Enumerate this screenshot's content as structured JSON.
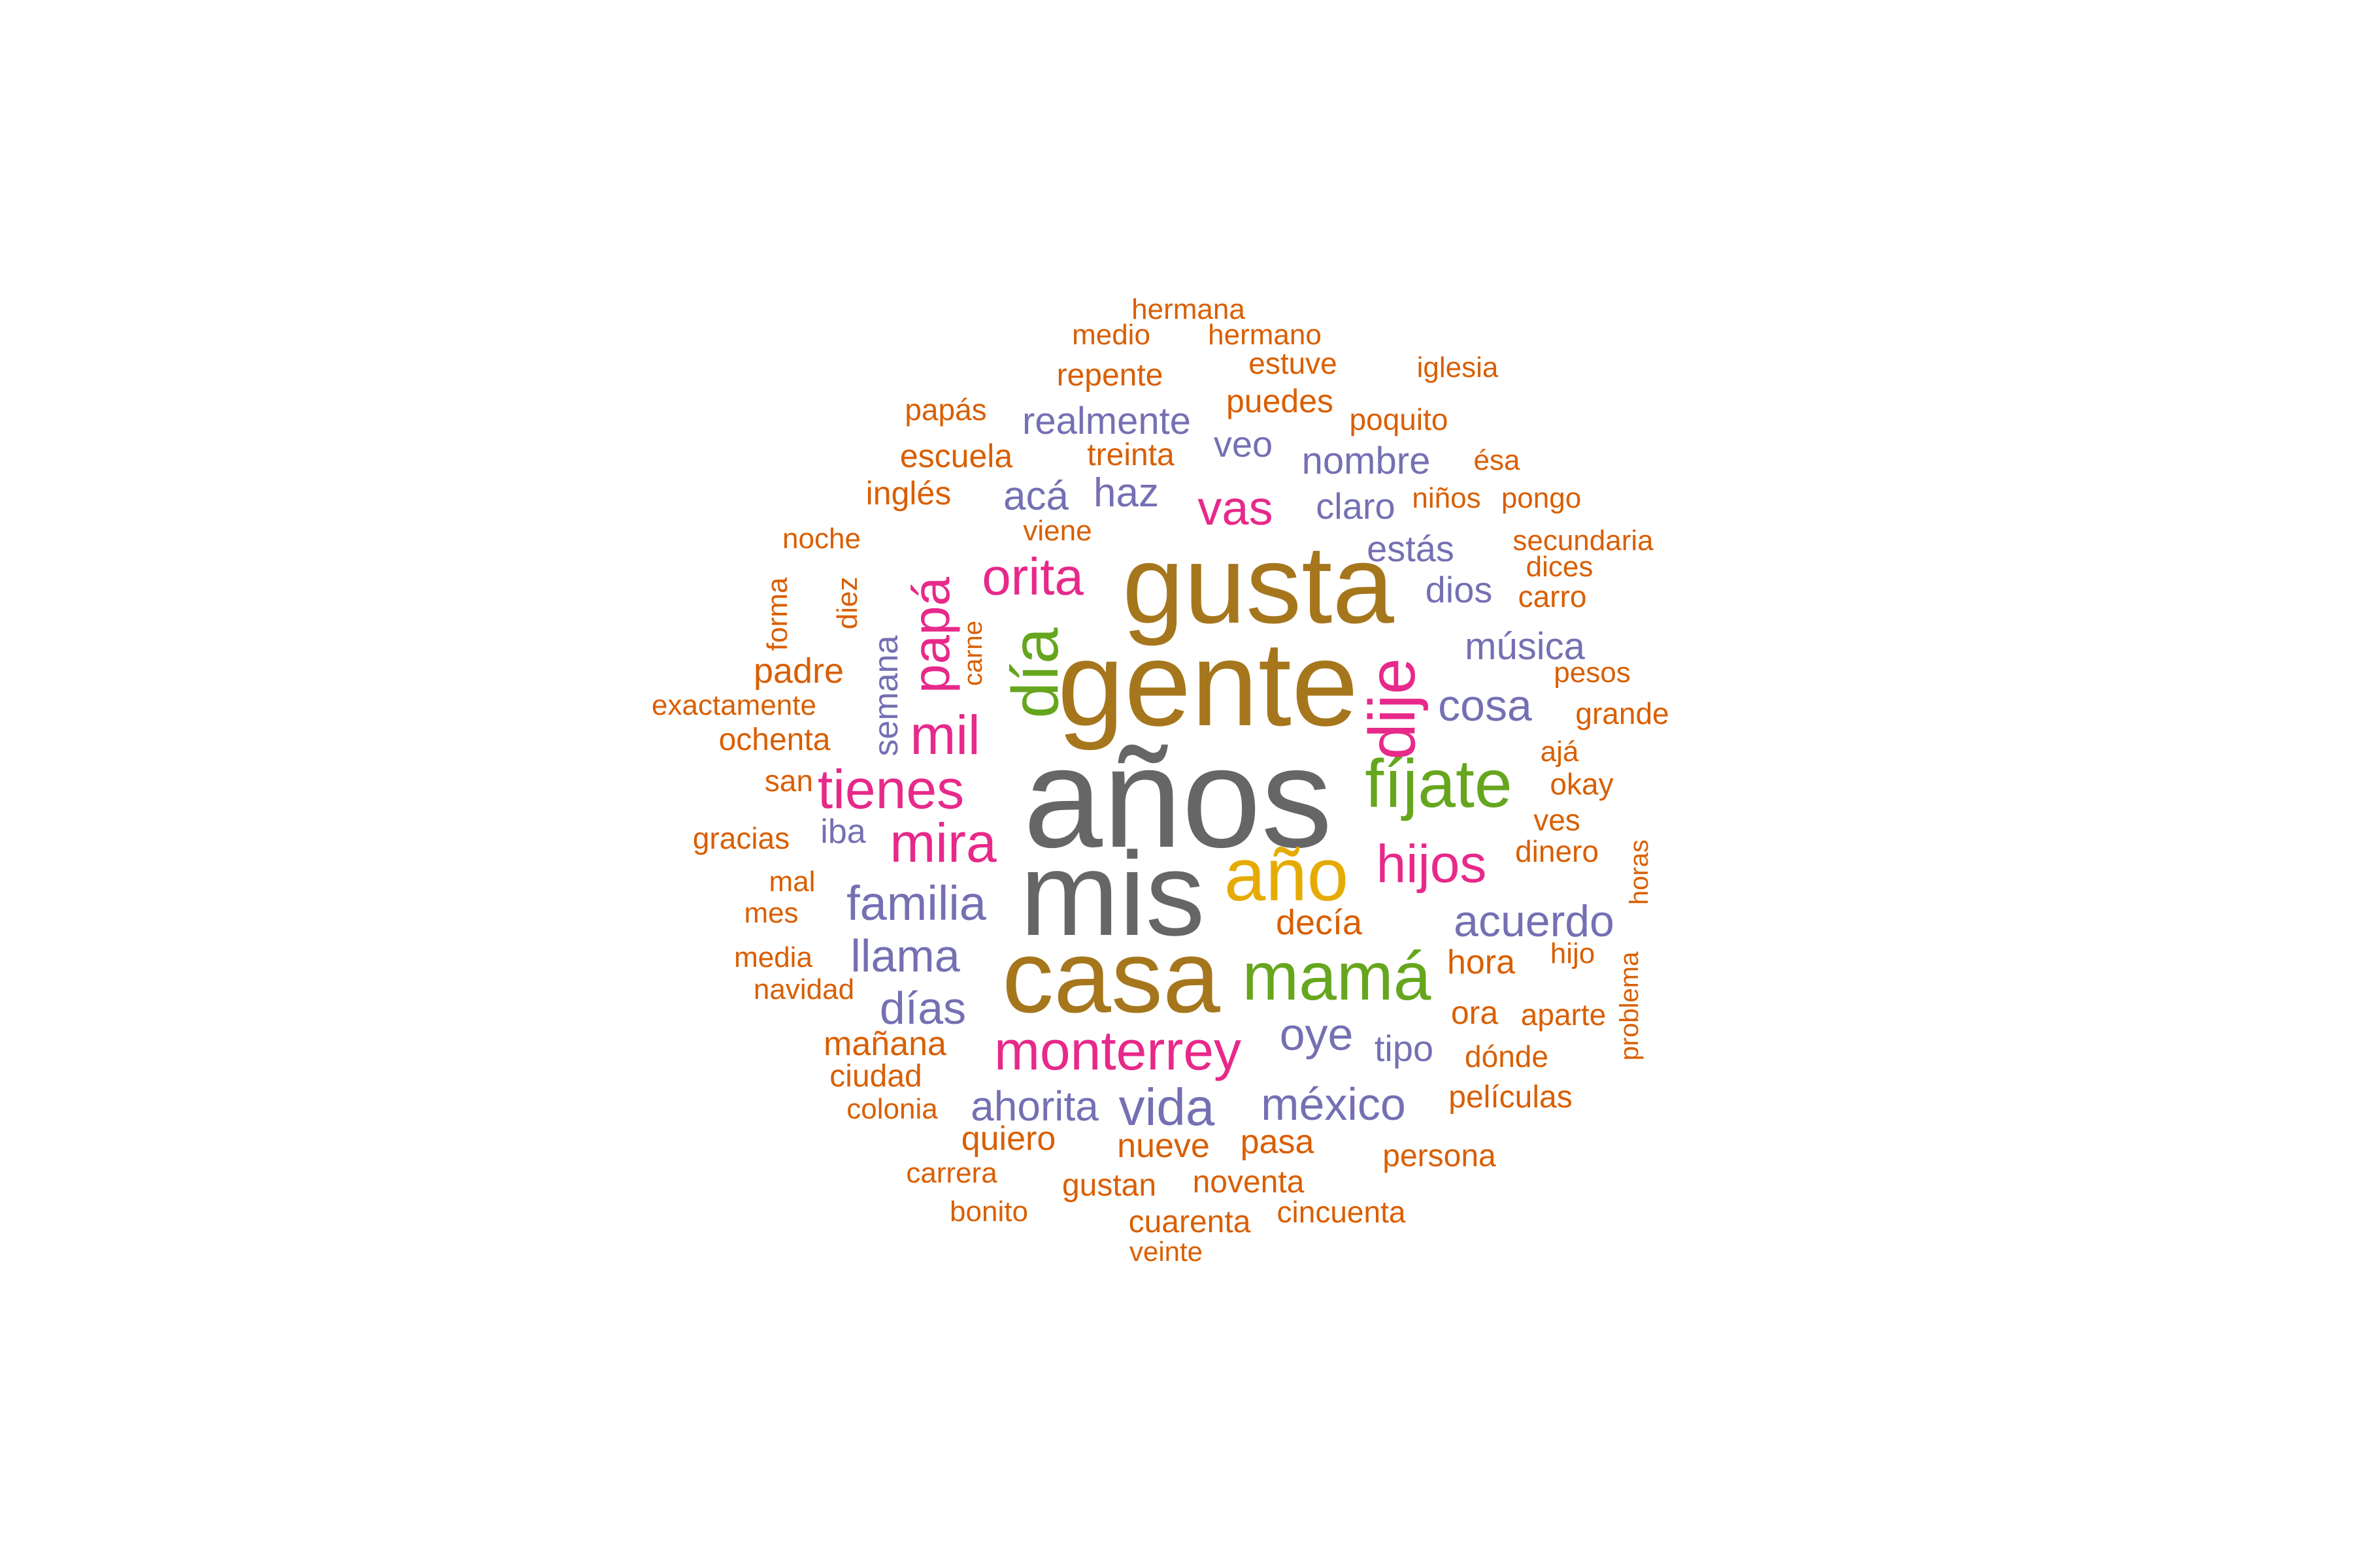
{
  "palette": {
    "grey": "#666666",
    "brown": "#A6761D",
    "gold": "#E6AB02",
    "green": "#66A61E",
    "magenta": "#E7298A",
    "purple": "#7570B3",
    "orange": "#D95F02"
  },
  "words": [
    {
      "text": "años",
      "color": "grey"
    },
    {
      "text": "mis",
      "color": "grey"
    },
    {
      "text": "gente",
      "color": "brown"
    },
    {
      "text": "gusta",
      "color": "brown"
    },
    {
      "text": "casa",
      "color": "brown"
    },
    {
      "text": "año",
      "color": "gold"
    },
    {
      "text": "mamá",
      "color": "green"
    },
    {
      "text": "fíjate",
      "color": "green"
    },
    {
      "text": "día",
      "color": "green"
    },
    {
      "text": "dije",
      "color": "magenta"
    },
    {
      "text": "monterrey",
      "color": "magenta"
    },
    {
      "text": "tienes",
      "color": "magenta"
    },
    {
      "text": "mira",
      "color": "magenta"
    },
    {
      "text": "mil",
      "color": "magenta"
    },
    {
      "text": "orita",
      "color": "magenta"
    },
    {
      "text": "papá",
      "color": "magenta"
    },
    {
      "text": "hijos",
      "color": "magenta"
    },
    {
      "text": "vas",
      "color": "magenta"
    },
    {
      "text": "familia",
      "color": "purple"
    },
    {
      "text": "acuerdo",
      "color": "purple"
    },
    {
      "text": "cosa",
      "color": "purple"
    },
    {
      "text": "llama",
      "color": "purple"
    },
    {
      "text": "días",
      "color": "purple"
    },
    {
      "text": "oye",
      "color": "purple"
    },
    {
      "text": "méxico",
      "color": "purple"
    },
    {
      "text": "vida",
      "color": "purple"
    },
    {
      "text": "ahorita",
      "color": "purple"
    },
    {
      "text": "acá",
      "color": "purple"
    },
    {
      "text": "haz",
      "color": "purple"
    },
    {
      "text": "realmente",
      "color": "purple"
    },
    {
      "text": "música",
      "color": "purple"
    },
    {
      "text": "nombre",
      "color": "purple"
    },
    {
      "text": "veo",
      "color": "purple"
    },
    {
      "text": "claro",
      "color": "purple"
    },
    {
      "text": "estás",
      "color": "purple"
    },
    {
      "text": "dios",
      "color": "purple"
    },
    {
      "text": "tipo",
      "color": "purple"
    },
    {
      "text": "semana",
      "color": "purple"
    },
    {
      "text": "iba",
      "color": "purple"
    },
    {
      "text": "decía",
      "color": "orange"
    },
    {
      "text": "hora",
      "color": "orange"
    },
    {
      "text": "ora",
      "color": "orange"
    },
    {
      "text": "padre",
      "color": "orange"
    },
    {
      "text": "mañana",
      "color": "orange"
    },
    {
      "text": "quiero",
      "color": "orange"
    },
    {
      "text": "nueve",
      "color": "orange"
    },
    {
      "text": "pasa",
      "color": "orange"
    },
    {
      "text": "inglés",
      "color": "orange"
    },
    {
      "text": "escuela",
      "color": "orange"
    },
    {
      "text": "treinta",
      "color": "orange"
    },
    {
      "text": "puedes",
      "color": "orange"
    },
    {
      "text": "repente",
      "color": "orange"
    },
    {
      "text": "estuve",
      "color": "orange"
    },
    {
      "text": "poquito",
      "color": "orange"
    },
    {
      "text": "papás",
      "color": "orange"
    },
    {
      "text": "ochenta",
      "color": "orange"
    },
    {
      "text": "exactamente",
      "color": "orange"
    },
    {
      "text": "san",
      "color": "orange"
    },
    {
      "text": "gracias",
      "color": "orange"
    },
    {
      "text": "ciudad",
      "color": "orange"
    },
    {
      "text": "colonia",
      "color": "orange"
    },
    {
      "text": "películas",
      "color": "orange"
    },
    {
      "text": "persona",
      "color": "orange"
    },
    {
      "text": "gustan",
      "color": "orange"
    },
    {
      "text": "noventa",
      "color": "orange"
    },
    {
      "text": "cuarenta",
      "color": "orange"
    },
    {
      "text": "cincuenta",
      "color": "orange"
    },
    {
      "text": "dónde",
      "color": "orange"
    },
    {
      "text": "aparte",
      "color": "orange"
    },
    {
      "text": "dinero",
      "color": "orange"
    },
    {
      "text": "grande",
      "color": "orange"
    },
    {
      "text": "okay",
      "color": "orange"
    },
    {
      "text": "ves",
      "color": "orange"
    },
    {
      "text": "carro",
      "color": "orange"
    },
    {
      "text": "dices",
      "color": "orange"
    },
    {
      "text": "secundaria",
      "color": "orange"
    },
    {
      "text": "niños",
      "color": "orange"
    },
    {
      "text": "pongo",
      "color": "orange"
    },
    {
      "text": "ésa",
      "color": "orange"
    },
    {
      "text": "iglesia",
      "color": "orange"
    },
    {
      "text": "hermana",
      "color": "orange"
    },
    {
      "text": "medio",
      "color": "orange"
    },
    {
      "text": "hermano",
      "color": "orange"
    },
    {
      "text": "noche",
      "color": "orange"
    },
    {
      "text": "viene",
      "color": "orange"
    },
    {
      "text": "mal",
      "color": "orange"
    },
    {
      "text": "mes",
      "color": "orange"
    },
    {
      "text": "media",
      "color": "orange"
    },
    {
      "text": "navidad",
      "color": "orange"
    },
    {
      "text": "carrera",
      "color": "orange"
    },
    {
      "text": "bonito",
      "color": "orange"
    },
    {
      "text": "veinte",
      "color": "orange"
    },
    {
      "text": "pesos",
      "color": "orange"
    },
    {
      "text": "ajá",
      "color": "orange"
    },
    {
      "text": "hijo",
      "color": "orange"
    },
    {
      "text": "forma",
      "color": "orange"
    },
    {
      "text": "diez",
      "color": "orange"
    },
    {
      "text": "carne",
      "color": "orange"
    },
    {
      "text": "horas",
      "color": "orange"
    },
    {
      "text": "problema",
      "color": "orange"
    }
  ]
}
